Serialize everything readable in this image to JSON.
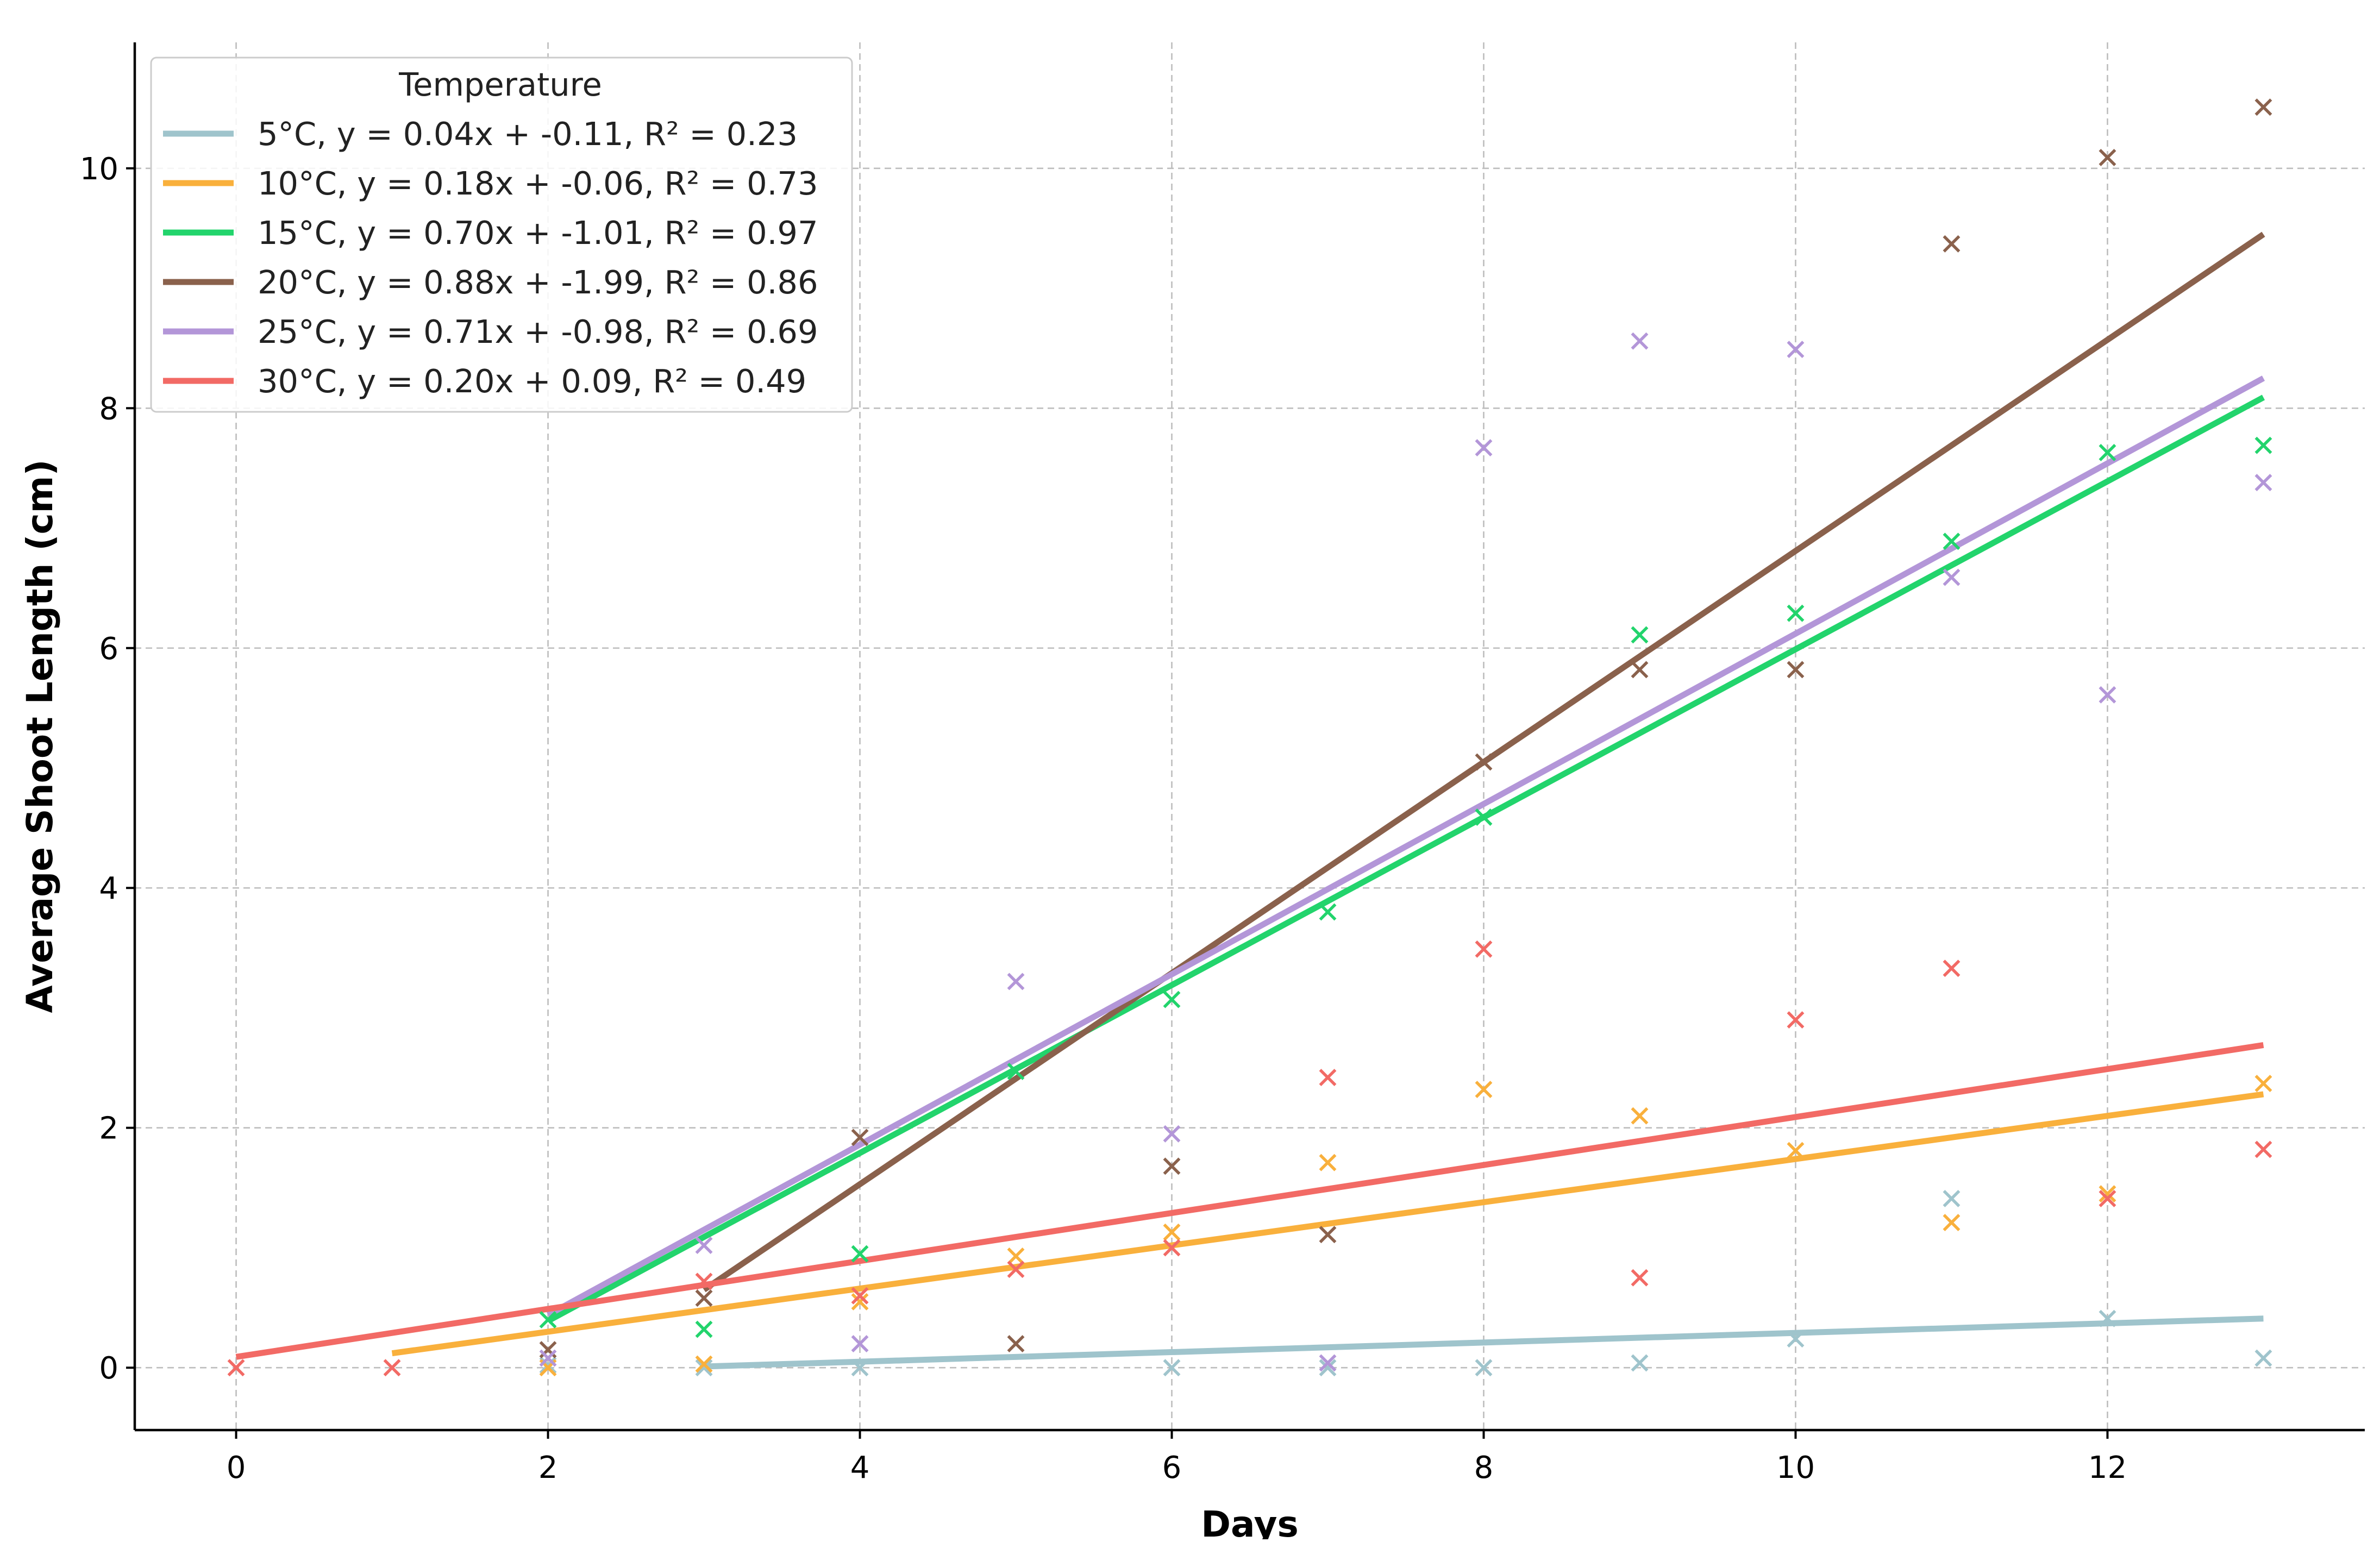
{
  "chart_data": {
    "type": "scatter",
    "title": "",
    "xlabel": "Days",
    "ylabel": "Average Shoot Length (cm)",
    "xlim": [
      -0.65,
      13.65
    ],
    "ylim": [
      -0.52,
      11.05
    ],
    "xticks": [
      0,
      2,
      4,
      6,
      8,
      10,
      12
    ],
    "yticks": [
      0,
      2,
      4,
      6,
      8,
      10
    ],
    "grid": true,
    "legend": {
      "title": "Temperature",
      "position": "top-left"
    },
    "series": [
      {
        "name": "5°C",
        "label": "5°C, y = 0.04x + -0.11, R² = 0.23",
        "color": "#9fc4cc",
        "x": [
          2,
          3,
          4,
          6,
          7,
          8,
          9,
          10,
          11,
          12,
          13
        ],
        "y": [
          0.02,
          0.0,
          0.0,
          0.0,
          0.0,
          0.0,
          0.04,
          0.24,
          1.41,
          0.41,
          0.08
        ],
        "fit": {
          "slope": 0.04,
          "intercept": -0.11,
          "x_start": 3,
          "x_end": 13
        }
      },
      {
        "name": "10°C",
        "label": "10°C, y = 0.18x + -0.06, R² = 0.73",
        "color": "#f9b03c",
        "x": [
          2,
          3,
          4,
          5,
          6,
          7,
          8,
          9,
          10,
          11,
          12,
          13
        ],
        "y": [
          0.0,
          0.03,
          0.55,
          0.93,
          1.13,
          1.71,
          2.32,
          2.1,
          1.81,
          1.21,
          1.45,
          2.37
        ],
        "fit": {
          "slope": 0.18,
          "intercept": -0.06,
          "x_start": 1,
          "x_end": 13
        }
      },
      {
        "name": "15°C",
        "label": "15°C, y = 0.70x + -1.01, R² = 0.97",
        "color": "#22d46c",
        "x": [
          2,
          3,
          4,
          5,
          6,
          7,
          8,
          9,
          10,
          11,
          12,
          13
        ],
        "y": [
          0.4,
          0.32,
          0.95,
          2.47,
          3.07,
          3.8,
          4.59,
          6.11,
          6.29,
          6.89,
          7.63,
          7.69
        ],
        "fit": {
          "slope": 0.7,
          "intercept": -1.01,
          "x_start": 2,
          "x_end": 13
        }
      },
      {
        "name": "20°C",
        "label": "20°C, y = 0.88x + -1.99, R² = 0.86",
        "color": "#8a614c",
        "x": [
          2,
          3,
          4,
          5,
          6,
          7,
          8,
          9,
          10,
          11,
          12,
          13
        ],
        "y": [
          0.15,
          0.58,
          1.92,
          0.2,
          1.68,
          1.11,
          5.05,
          5.82,
          5.82,
          9.37,
          10.09,
          10.51
        ],
        "fit": {
          "slope": 0.88,
          "intercept": -1.99,
          "x_start": 3,
          "x_end": 13
        }
      },
      {
        "name": "25°C",
        "label": "25°C, y = 0.71x + -0.98, R² = 0.69",
        "color": "#b396d8",
        "x": [
          2,
          3,
          4,
          5,
          6,
          7,
          8,
          9,
          10,
          11,
          12,
          13
        ],
        "y": [
          0.08,
          1.02,
          0.2,
          3.22,
          1.95,
          0.04,
          7.67,
          8.56,
          8.49,
          6.59,
          5.61,
          7.38
        ],
        "fit": {
          "slope": 0.71,
          "intercept": -0.98,
          "x_start": 2,
          "x_end": 13
        }
      },
      {
        "name": "30°C",
        "label": "30°C, y = 0.20x + 0.09, R² = 0.49",
        "color": "#f26a65",
        "x": [
          0,
          1,
          3,
          4,
          5,
          6,
          7,
          8,
          9,
          10,
          11,
          12,
          13
        ],
        "y": [
          0.0,
          0.0,
          0.72,
          0.6,
          0.82,
          1.0,
          2.42,
          3.49,
          0.75,
          2.9,
          3.33,
          1.41,
          1.82
        ],
        "fit": {
          "slope": 0.2,
          "intercept": 0.09,
          "x_start": 0,
          "x_end": 13
        }
      }
    ]
  }
}
